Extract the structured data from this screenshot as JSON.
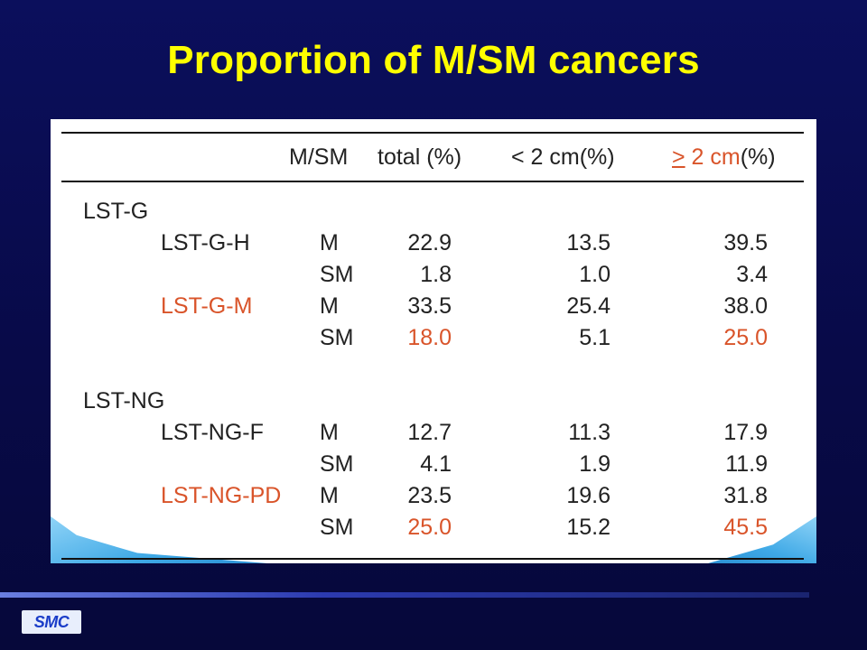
{
  "title": "Proportion of M/SM cancers",
  "table": {
    "header": {
      "col_msm": "M/SM",
      "col_total": "total (%)",
      "col_lt2": "< 2 cm(%)",
      "col_ge2_symbol": ">",
      "col_ge2_rest": " 2 cm",
      "col_ge2_unit": "(%)"
    },
    "groups": [
      {
        "label": "LST-G",
        "subgroups": [
          {
            "label": "LST-G-H",
            "highlight": false,
            "rows": [
              {
                "type": "M",
                "total": "22.9",
                "lt2": "13.5",
                "ge2": "39.5"
              },
              {
                "type": "SM",
                "total": "1.8",
                "lt2": "1.0",
                "ge2": "3.4"
              }
            ]
          },
          {
            "label": "LST-G-M",
            "highlight": true,
            "rows": [
              {
                "type": "M",
                "total": "33.5",
                "lt2": "25.4",
                "ge2": "38.0"
              },
              {
                "type": "SM",
                "total": "18.0",
                "lt2": "5.1",
                "ge2": "25.0"
              }
            ]
          }
        ]
      },
      {
        "label": "LST-NG",
        "subgroups": [
          {
            "label": "LST-NG-F",
            "highlight": false,
            "rows": [
              {
                "type": "M",
                "total": "12.7",
                "lt2": "11.3",
                "ge2": "17.9"
              },
              {
                "type": "SM",
                "total": "4.1",
                "lt2": "1.9",
                "ge2": "11.9"
              }
            ]
          },
          {
            "label": "LST-NG-PD",
            "highlight": true,
            "rows": [
              {
                "type": "M",
                "total": "23.5",
                "lt2": "19.6",
                "ge2": "31.8"
              },
              {
                "type": "SM",
                "total": "25.0",
                "lt2": "15.2",
                "ge2": "45.5"
              }
            ]
          }
        ]
      }
    ]
  },
  "colors": {
    "title": "#ffff00",
    "highlight": "#d9542a",
    "background": "#0b0f5c"
  },
  "footer": {
    "logo_text": "SMC"
  }
}
